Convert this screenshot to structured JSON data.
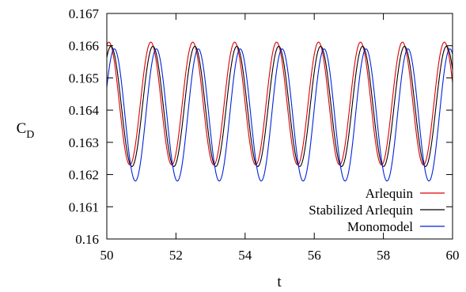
{
  "chart_data": {
    "type": "line",
    "title": "",
    "xlabel": "t",
    "ylabel": "C",
    "ylabel_subscript": "D",
    "xlim": [
      50,
      60
    ],
    "ylim": [
      0.16,
      0.167
    ],
    "x_ticks": [
      "50",
      "52",
      "54",
      "56",
      "58",
      "60"
    ],
    "y_ticks": [
      "0.16",
      "0.161",
      "0.162",
      "0.163",
      "0.164",
      "0.165",
      "0.166",
      "0.167"
    ],
    "grid": false,
    "legend_position": "bottom-right",
    "series": [
      {
        "name": "Arlequin",
        "color": "#e00000",
        "x_start": 50.0,
        "x_end": 60.0,
        "period": 1.213,
        "peak_time": 50.06,
        "max": 0.16611,
        "min": 0.1623
      },
      {
        "name": "Stabilized Arlequin",
        "color": "#000000",
        "x_start": 50.0,
        "x_end": 60.0,
        "period": 1.213,
        "peak_time": 50.12,
        "max": 0.16598,
        "min": 0.16225
      },
      {
        "name": "Monomodel",
        "color": "#0022dd",
        "x_start": 50.0,
        "x_end": 60.0,
        "period": 1.213,
        "peak_time": 50.22,
        "max": 0.1659,
        "min": 0.1618
      }
    ]
  }
}
